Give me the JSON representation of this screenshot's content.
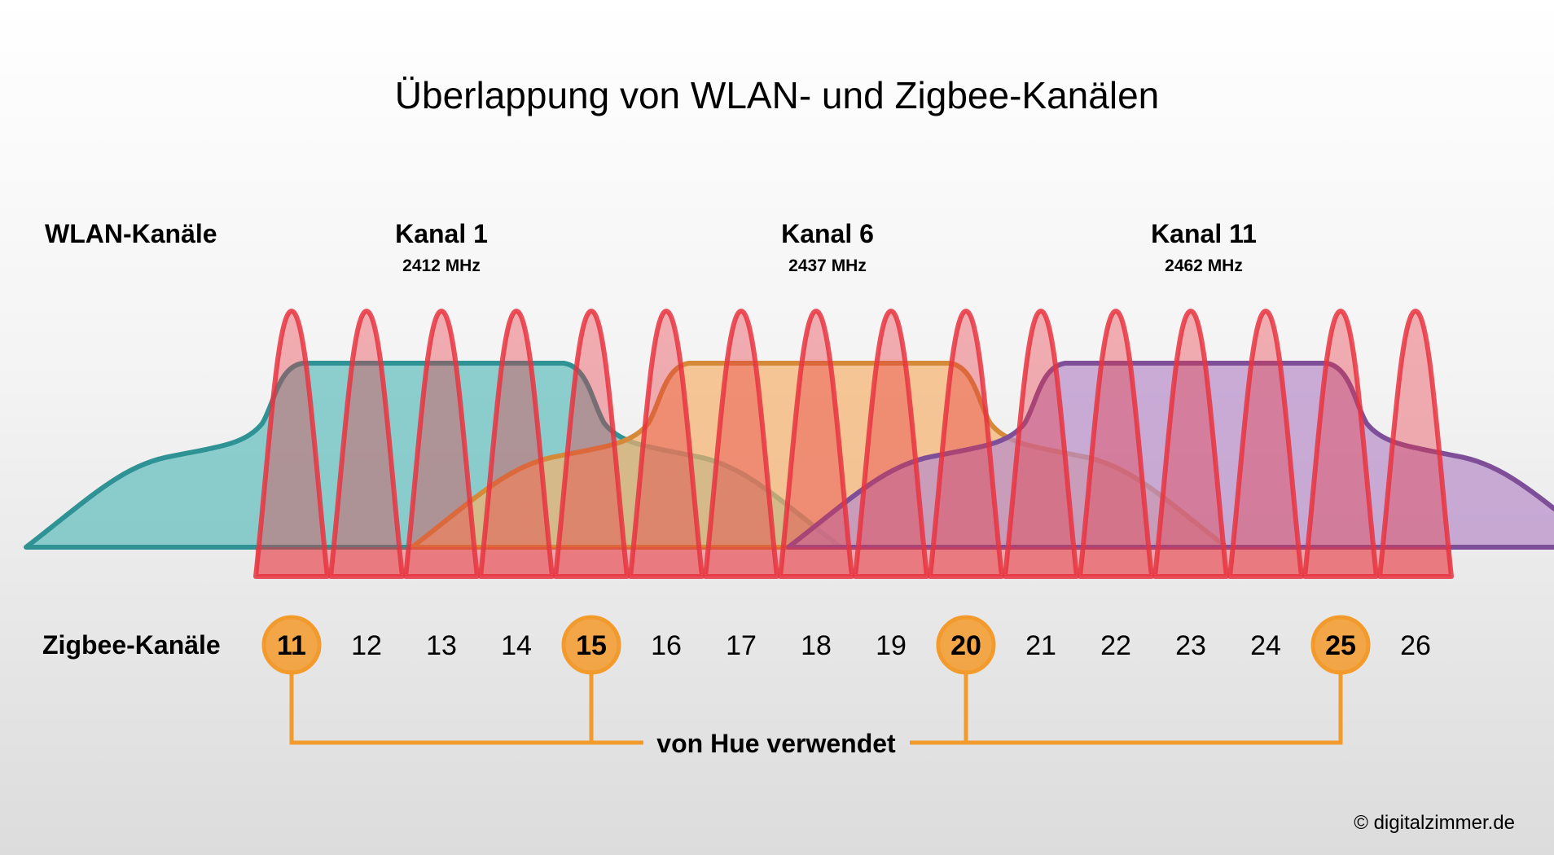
{
  "title": "Überlappung von WLAN- und Zigbee-Kanälen",
  "wlan": {
    "section_label": "WLAN-Kanäle",
    "channels": [
      {
        "name": "Kanal 1",
        "freq": "2412 MHz",
        "fill": "#5fbdbd",
        "stroke": "#2f9294"
      },
      {
        "name": "Kanal 6",
        "freq": "2437 MHz",
        "fill": "#f5b06c",
        "stroke": "#d58a3a"
      },
      {
        "name": "Kanal 11",
        "freq": "2462 MHz",
        "fill": "#b78bc9",
        "stroke": "#7e4f98"
      }
    ]
  },
  "zigbee": {
    "section_label": "Zigbee-Kanäle",
    "channels": [
      "11",
      "12",
      "13",
      "14",
      "15",
      "16",
      "17",
      "18",
      "19",
      "20",
      "21",
      "22",
      "23",
      "24",
      "25",
      "26"
    ],
    "highlighted": [
      "11",
      "15",
      "20",
      "25"
    ],
    "peak_color": "#e8343f",
    "highlight_color": "#f39a2c"
  },
  "hue_label": "von Hue verwendet",
  "credit": "© digitalzimmer.de"
}
